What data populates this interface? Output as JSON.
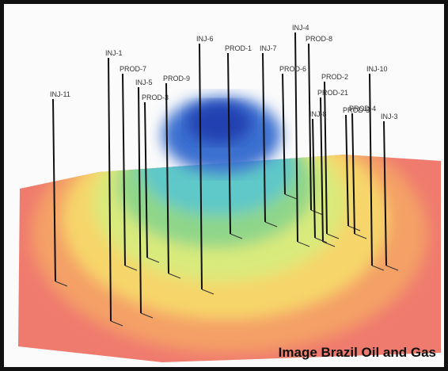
{
  "caption": "Image Brazil Oil and Gas",
  "wells": [
    {
      "label": "INJ-11"
    },
    {
      "label": "INJ-1"
    },
    {
      "label": "PROD-7"
    },
    {
      "label": "INJ-5"
    },
    {
      "label": "PROD-3"
    },
    {
      "label": "PROD-9"
    },
    {
      "label": "INJ-6"
    },
    {
      "label": "PROD-1"
    },
    {
      "label": "INJ-7"
    },
    {
      "label": "INJ-4"
    },
    {
      "label": "PROD-8"
    },
    {
      "label": "PROD-6"
    },
    {
      "label": "INJ-10"
    },
    {
      "label": "PROD-2"
    },
    {
      "label": "PROD-21"
    },
    {
      "label": "INJ-8"
    },
    {
      "label": "PROD-5"
    },
    {
      "label": "INJ-3"
    },
    {
      "label": "PROD-4"
    }
  ]
}
